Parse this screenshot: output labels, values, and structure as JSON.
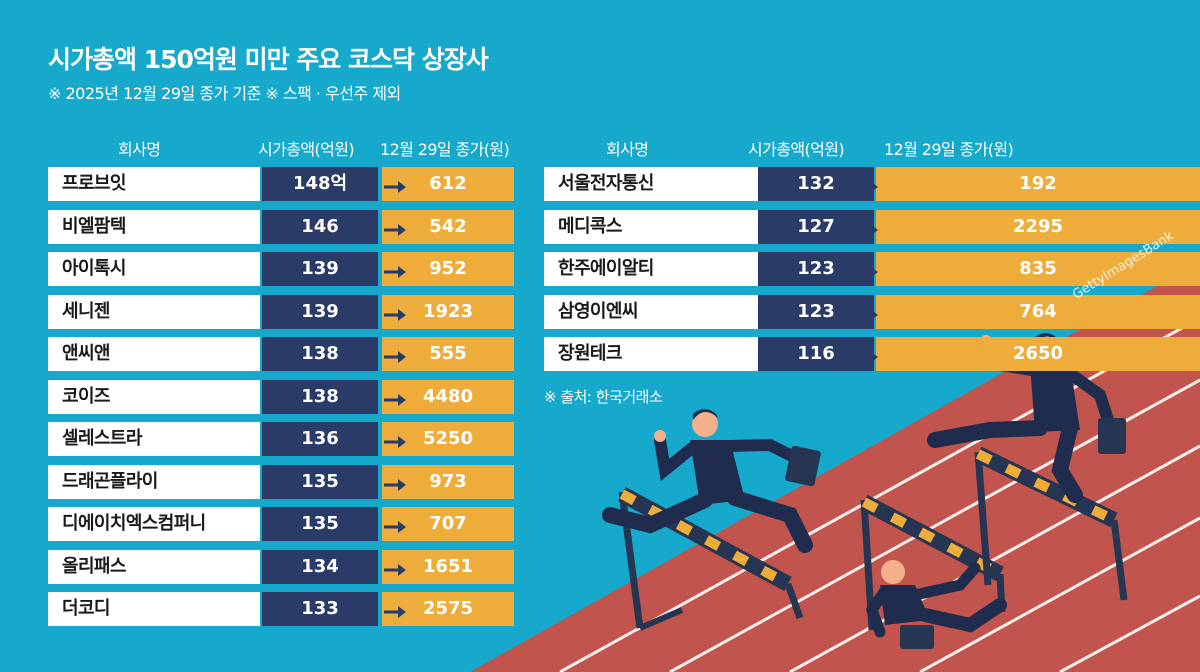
{
  "title": "시가총액 150억원 미만 주요 코스닥 상장사",
  "subtitle": "※ 2025년 12월 29일 종가 기준   ※ 스팩 · 우선주 제외",
  "headers": {
    "company": "회사명",
    "market_cap": "시가총액(억원)",
    "close_price": "12월 29일 종가(원)"
  },
  "source": "※ 출처: 한국거래소",
  "watermark": "GettyImagesBank",
  "colors": {
    "background": "#16a9cc",
    "name_cell": "#ffffff",
    "cap_cell": "#2b3b67",
    "price_cell": "#eeac3b",
    "track": "#c1544c"
  },
  "chart_data": {
    "type": "table",
    "columns": [
      "회사명",
      "시가총액(억원)",
      "12월 29일 종가(원)"
    ],
    "rows": [
      {
        "company": "프로브잇",
        "market_cap": "148억",
        "price": "612"
      },
      {
        "company": "비엘팜텍",
        "market_cap": "146",
        "price": "542"
      },
      {
        "company": "아이톡시",
        "market_cap": "139",
        "price": "952"
      },
      {
        "company": "세니젠",
        "market_cap": "139",
        "price": "1923"
      },
      {
        "company": "앤씨앤",
        "market_cap": "138",
        "price": "555"
      },
      {
        "company": "코이즈",
        "market_cap": "138",
        "price": "4480"
      },
      {
        "company": "셀레스트라",
        "market_cap": "136",
        "price": "5250"
      },
      {
        "company": "드래곤플라이",
        "market_cap": "135",
        "price": "973"
      },
      {
        "company": "디에이치엑스컴퍼니",
        "market_cap": "135",
        "price": "707"
      },
      {
        "company": "올리패스",
        "market_cap": "134",
        "price": "1651"
      },
      {
        "company": "더코디",
        "market_cap": "133",
        "price": "2575"
      },
      {
        "company": "서울전자통신",
        "market_cap": "132",
        "price": "192"
      },
      {
        "company": "메디콕스",
        "market_cap": "127",
        "price": "2295"
      },
      {
        "company": "한주에이알티",
        "market_cap": "123",
        "price": "835"
      },
      {
        "company": "삼영이엔씨",
        "market_cap": "123",
        "price": "764"
      },
      {
        "company": "장원테크",
        "market_cap": "116",
        "price": "2650"
      }
    ]
  }
}
